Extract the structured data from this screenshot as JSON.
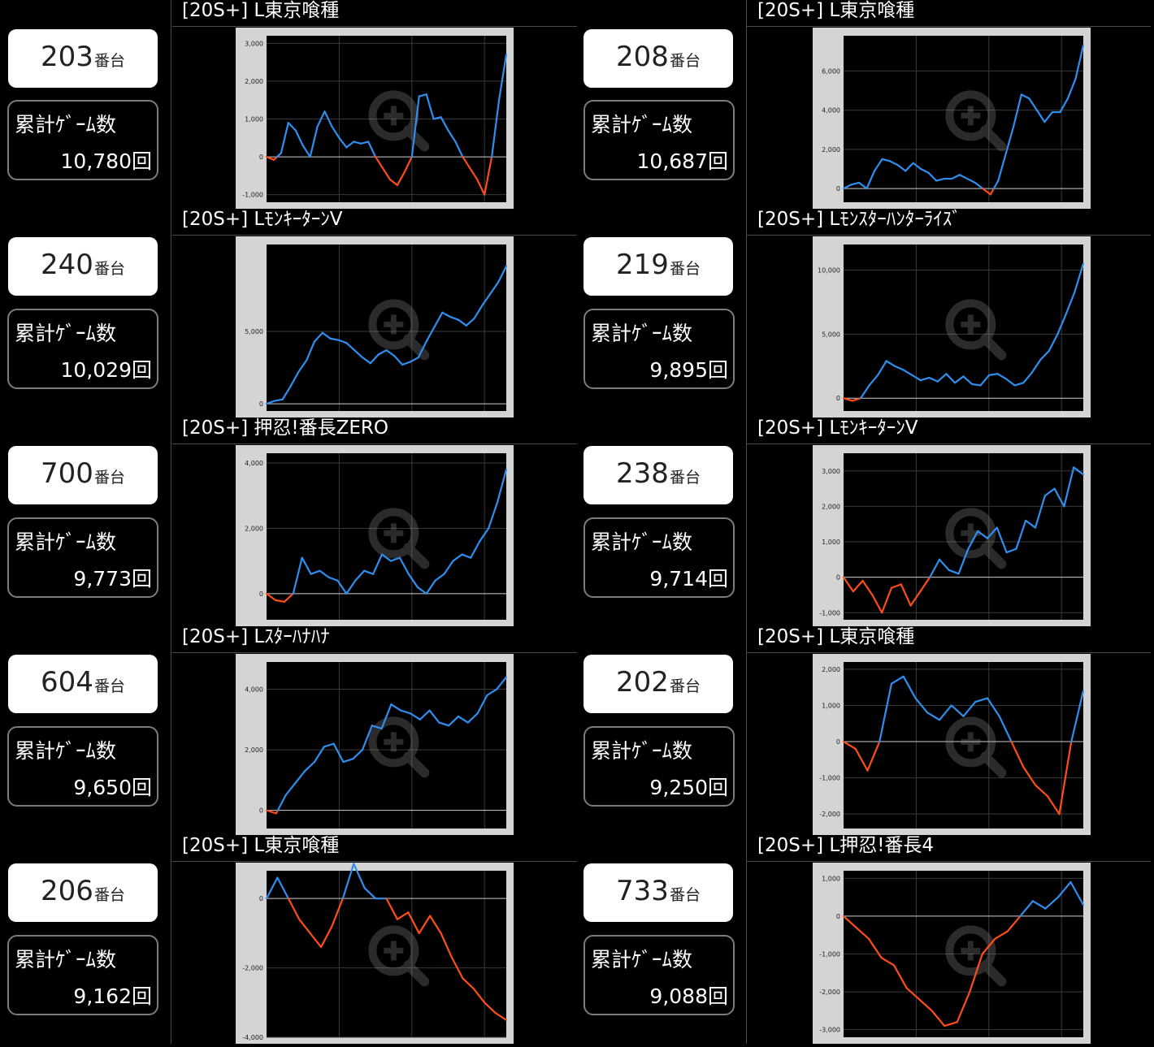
{
  "colors": {
    "positive": "#2e8ff0",
    "negative": "#ff4d1a",
    "frame": "#d4d4d4",
    "plot": "#000000"
  },
  "icons": {
    "chart_overlay": "zoom-in-icon"
  },
  "cards": [
    {
      "title": "[20S+] L東京喰種",
      "machine": "203",
      "suffix": "番台",
      "games_label": "累計ｹﾞｰﾑ数",
      "games": "10,780回",
      "chart_data": {
        "type": "line",
        "ylim": [
          -1200,
          3200
        ],
        "yticks": [
          -1000,
          0,
          1000,
          2000,
          3000
        ],
        "ytick_labels": [
          "-1,000",
          "0",
          "1,000",
          "2,000",
          "3,000"
        ],
        "values": [
          0,
          -80,
          100,
          900,
          700,
          300,
          0,
          800,
          1200,
          800,
          500,
          250,
          400,
          350,
          400,
          0,
          -300,
          -600,
          -750,
          -400,
          0,
          1600,
          1650,
          1000,
          1050,
          700,
          400,
          0,
          -300,
          -600,
          -1000,
          0,
          1500,
          2700
        ]
      }
    },
    {
      "title": "[20S+] L東京喰種",
      "machine": "208",
      "suffix": "番台",
      "games_label": "累計ｹﾞｰﾑ数",
      "games": "10,687回",
      "chart_data": {
        "type": "line",
        "ylim": [
          -700,
          7800
        ],
        "yticks": [
          0,
          2000,
          4000,
          6000
        ],
        "ytick_labels": [
          "0",
          "2,000",
          "4,000",
          "6,000"
        ],
        "values": [
          0,
          200,
          300,
          0,
          900,
          1500,
          1400,
          1200,
          900,
          1300,
          1000,
          800,
          400,
          500,
          500,
          700,
          500,
          300,
          0,
          -300,
          400,
          1800,
          3200,
          4800,
          4600,
          4000,
          3400,
          3900,
          3900,
          4600,
          5600,
          7300
        ]
      }
    },
    {
      "title": "[20S+] LﾓﾝｷｰﾀｰﾝV",
      "machine": "240",
      "suffix": "番台",
      "games_label": "累計ｹﾞｰﾑ数",
      "games": "10,029回",
      "chart_data": {
        "type": "line",
        "ylim": [
          -500,
          11000
        ],
        "yticks": [
          0,
          5000
        ],
        "ytick_labels": [
          "0",
          "5,000"
        ],
        "values": [
          0,
          200,
          300,
          1200,
          2200,
          3000,
          4300,
          4900,
          4500,
          4400,
          4200,
          3700,
          3200,
          2800,
          3400,
          3700,
          3300,
          2700,
          2900,
          3200,
          4300,
          5300,
          6300,
          6000,
          5800,
          5400,
          5900,
          6800,
          7600,
          8400,
          9500
        ]
      }
    },
    {
      "title": "[20S+] Lﾓﾝｽﾀｰﾊﾝﾀｰﾗｲｽﾞ",
      "machine": "219",
      "suffix": "番台",
      "games_label": "累計ｹﾞｰﾑ数",
      "games": "9,895回",
      "chart_data": {
        "type": "line",
        "ylim": [
          -1000,
          12000
        ],
        "yticks": [
          0,
          5000,
          10000
        ],
        "ytick_labels": [
          "0",
          "5,000",
          "10,000"
        ],
        "values": [
          0,
          -200,
          0,
          1000,
          1800,
          2900,
          2500,
          2200,
          1800,
          1400,
          1600,
          1300,
          1900,
          1200,
          1700,
          1100,
          1000,
          1800,
          1900,
          1500,
          1000,
          1200,
          2000,
          3000,
          3700,
          5000,
          6600,
          8300,
          10500
        ]
      }
    },
    {
      "title": "[20S+] 押忍!番長ZERO",
      "machine": "700",
      "suffix": "番台",
      "games_label": "累計ｹﾞｰﾑ数",
      "games": "9,773回",
      "chart_data": {
        "type": "line",
        "ylim": [
          -800,
          4300
        ],
        "yticks": [
          0,
          2000,
          4000
        ],
        "ytick_labels": [
          "0",
          "2,000",
          "4,000"
        ],
        "values": [
          0,
          -200,
          -250,
          0,
          1100,
          600,
          700,
          500,
          400,
          0,
          400,
          700,
          600,
          1200,
          1000,
          1100,
          600,
          200,
          0,
          400,
          600,
          1000,
          1200,
          1100,
          1600,
          2000,
          2800,
          3800
        ]
      }
    },
    {
      "title": "[20S+] LﾓﾝｷｰﾀｰﾝV",
      "machine": "238",
      "suffix": "番台",
      "games_label": "累計ｹﾞｰﾑ数",
      "games": "9,714回",
      "chart_data": {
        "type": "line",
        "ylim": [
          -1200,
          3500
        ],
        "yticks": [
          -1000,
          0,
          1000,
          2000,
          3000
        ],
        "ytick_labels": [
          "-1,000",
          "0",
          "1,000",
          "2,000",
          "3,000"
        ],
        "values": [
          0,
          -400,
          -100,
          -500,
          -1000,
          -300,
          -200,
          -800,
          -400,
          0,
          500,
          200,
          100,
          800,
          1300,
          1100,
          1400,
          700,
          800,
          1600,
          1400,
          2300,
          2500,
          2000,
          3100,
          2900
        ]
      }
    },
    {
      "title": "[20S+] Lｽﾀｰﾊﾅﾊﾅ",
      "machine": "604",
      "suffix": "番台",
      "games_label": "累計ｹﾞｰﾑ数",
      "games": "9,650回",
      "chart_data": {
        "type": "line",
        "ylim": [
          -600,
          4900
        ],
        "yticks": [
          0,
          2000,
          4000
        ],
        "ytick_labels": [
          "0",
          "2,000",
          "4,000"
        ],
        "values": [
          0,
          -100,
          500,
          900,
          1300,
          1600,
          2100,
          2200,
          1600,
          1700,
          2000,
          2800,
          2700,
          3500,
          3300,
          3200,
          3000,
          3300,
          2900,
          2800,
          3100,
          2900,
          3200,
          3800,
          4000,
          4400
        ]
      }
    },
    {
      "title": "[20S+] L東京喰種",
      "machine": "202",
      "suffix": "番台",
      "games_label": "累計ｹﾞｰﾑ数",
      "games": "9,250回",
      "chart_data": {
        "type": "line",
        "ylim": [
          -2400,
          2200
        ],
        "yticks": [
          -2000,
          -1000,
          0,
          1000,
          2000
        ],
        "ytick_labels": [
          "-2,000",
          "-1,000",
          "0",
          "1,000",
          "2,000"
        ],
        "values": [
          0,
          -200,
          -800,
          0,
          1600,
          1800,
          1200,
          800,
          600,
          1000,
          700,
          1100,
          1200,
          700,
          0,
          -700,
          -1200,
          -1500,
          -2000,
          0,
          1400
        ]
      }
    },
    {
      "title": "[20S+] L東京喰種",
      "machine": "206",
      "suffix": "番台",
      "games_label": "累計ｹﾞｰﾑ数",
      "games": "9,162回",
      "chart_data": {
        "type": "line",
        "ylim": [
          -4000,
          800
        ],
        "yticks": [
          -4000,
          -2000,
          0
        ],
        "ytick_labels": [
          "-4,000",
          "-2,000",
          "0"
        ],
        "values": [
          0,
          600,
          0,
          -600,
          -1000,
          -1400,
          -800,
          0,
          1000,
          300,
          0,
          0,
          -600,
          -400,
          -1000,
          -500,
          -1000,
          -1700,
          -2300,
          -2600,
          -3000,
          -3300,
          -3500
        ]
      }
    },
    {
      "title": "[20S+] L押忍!番長4",
      "machine": "733",
      "suffix": "番台",
      "games_label": "累計ｹﾞｰﾑ数",
      "games": "9,088回",
      "chart_data": {
        "type": "line",
        "ylim": [
          -3200,
          1200
        ],
        "yticks": [
          -3000,
          -2000,
          -1000,
          0,
          1000
        ],
        "ytick_labels": [
          "-3,000",
          "-2,000",
          "-1,000",
          "0",
          "1,000"
        ],
        "values": [
          0,
          -300,
          -600,
          -1100,
          -1300,
          -1900,
          -2200,
          -2500,
          -2900,
          -2800,
          -2000,
          -1000,
          -600,
          -400,
          0,
          400,
          200,
          500,
          900,
          300
        ]
      }
    }
  ]
}
